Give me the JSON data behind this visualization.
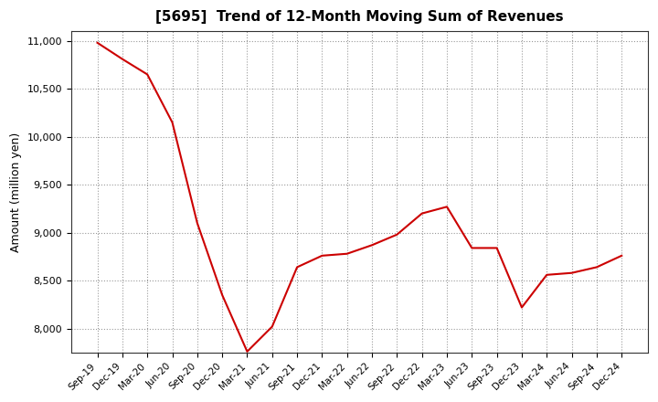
{
  "title": "[5695]  Trend of 12-Month Moving Sum of Revenues",
  "ylabel": "Amount (million yen)",
  "line_color": "#cc0000",
  "background_color": "#ffffff",
  "grid_color": "#999999",
  "xlabels": [
    "Sep-19",
    "Dec-19",
    "Mar-20",
    "Jun-20",
    "Sep-20",
    "Dec-20",
    "Mar-21",
    "Jun-21",
    "Sep-21",
    "Dec-21",
    "Mar-22",
    "Jun-22",
    "Sep-22",
    "Dec-22",
    "Mar-23",
    "Jun-23",
    "Sep-23",
    "Dec-23",
    "Mar-24",
    "Jun-24",
    "Sep-24",
    "Dec-24"
  ],
  "values": [
    10980,
    10810,
    10650,
    10150,
    9100,
    8350,
    7760,
    8020,
    8640,
    8760,
    8780,
    8870,
    8980,
    9200,
    9270,
    8840,
    8840,
    8220,
    8560,
    8580,
    8640,
    8760
  ],
  "ylim": [
    7750,
    11100
  ],
  "yticks": [
    8000,
    8500,
    9000,
    9500,
    10000,
    10500,
    11000
  ]
}
